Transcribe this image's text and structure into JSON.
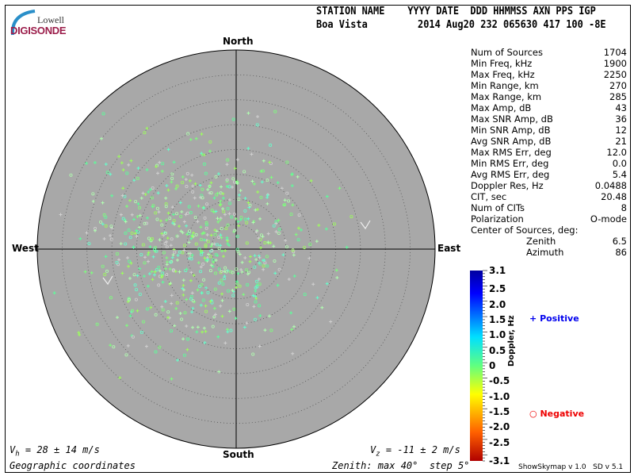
{
  "logo": {
    "line1": "Lowell",
    "line2": "DIGISONDE"
  },
  "header": {
    "labels": "STATION NAME    YYYY DATE  DDD HHMMSS AXN PPS IGP",
    "station": "Boa Vista",
    "values": "2014 Aug20 232 065630 417 100 -8E"
  },
  "stats": [
    {
      "label": "Num of Sources",
      "value": "1704"
    },
    {
      "label": "Min Freq, kHz",
      "value": "1900"
    },
    {
      "label": "Max Freq, kHz",
      "value": "2250"
    },
    {
      "label": "Min Range, km",
      "value": "270"
    },
    {
      "label": "Max Range, km",
      "value": "285"
    },
    {
      "label": "Max Amp, dB",
      "value": "43"
    },
    {
      "label": "Max SNR Amp, dB",
      "value": "36"
    },
    {
      "label": "Min SNR Amp, dB",
      "value": "12"
    },
    {
      "label": "Avg SNR Amp, dB",
      "value": "21"
    },
    {
      "label": "Max RMS Err, deg",
      "value": "12.0"
    },
    {
      "label": "Min RMS Err, deg",
      "value": "0.0"
    },
    {
      "label": "Avg RMS Err, deg",
      "value": "5.4"
    },
    {
      "label": "Doppler Res, Hz",
      "value": "0.0488"
    },
    {
      "label": "CIT, sec",
      "value": "20.48"
    },
    {
      "label": "Num of CITs",
      "value": "8"
    },
    {
      "label": "Polarization",
      "value": "O-mode"
    }
  ],
  "center": {
    "title": "Center of Sources, deg:",
    "zenith_label": "Zenith",
    "zenith": "6.5",
    "azimuth_label": "Azimuth",
    "azimuth": "86"
  },
  "chart_data": {
    "type": "scatter",
    "projection": "polar skymap",
    "directions": {
      "north": "North",
      "south": "South",
      "east": "East",
      "west": "West"
    },
    "zenith_max_deg": 40,
    "zenith_step_deg": 5,
    "center_of_sources": {
      "zenith_deg": 6.5,
      "azimuth_deg": 86
    },
    "background": "#a8a8a8",
    "colorbar": {
      "label": "Doppler, Hz",
      "min": -3.1,
      "max": 3.1,
      "ticks": [
        "3.1",
        "2.5",
        "2.0",
        "1.5",
        "1.0",
        "0.5",
        "0",
        "-0.5",
        "-1.0",
        "-1.5",
        "-2.0",
        "-2.5",
        "-3.1"
      ]
    },
    "legend": {
      "positive": "Positive",
      "negative": "Negative",
      "positive_color": "#0000ee",
      "negative_color": "#ee0000"
    }
  },
  "footer": {
    "vh": "= 28 ± 14 m/s",
    "vh_sym": "V",
    "vh_sub": "h",
    "vz": "= -11 ± 2 m/s",
    "vz_sym": "V",
    "vz_sub": "z",
    "coords": "Geographic coordinates",
    "zenith": "Zenith: max 40°  step 5°",
    "version": "ShowSkymap v 1.0   SD v 5.1"
  }
}
